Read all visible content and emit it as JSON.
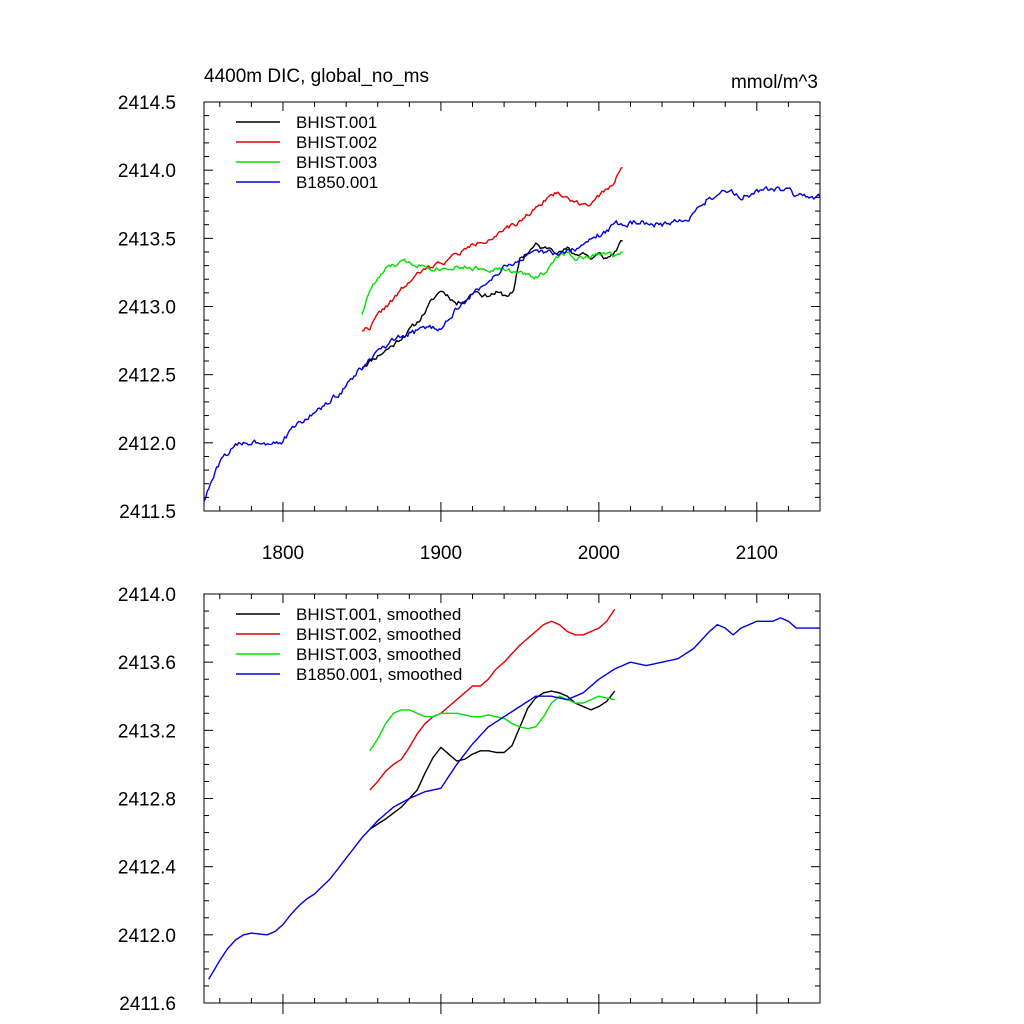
{
  "header": {
    "left_title": "4400m DIC, global_no_ms",
    "right_units": "mmol/m^3"
  },
  "chart_data": [
    {
      "type": "line",
      "xlim": [
        1750,
        2140
      ],
      "ylim": [
        2411.5,
        2414.5
      ],
      "x_ticks": [
        1800,
        1900,
        2000,
        2100
      ],
      "x_tick_labels": [
        "1800",
        "1900",
        "2000",
        "2100"
      ],
      "y_ticks": [
        2411.5,
        2412.0,
        2412.5,
        2413.0,
        2413.5,
        2414.0,
        2414.5
      ],
      "y_tick_labels": [
        "2411.5",
        "2412.0",
        "2412.5",
        "2413.0",
        "2413.5",
        "2414.0",
        "2414.5"
      ],
      "grid": false,
      "legend_position": "top-left",
      "series": [
        {
          "name": "BHIST.001",
          "color": "#000000",
          "noise": 0.02,
          "seed": 11,
          "x": [
            1850,
            1870,
            1885,
            1895,
            1900,
            1905,
            1910,
            1915,
            1922,
            1928,
            1935,
            1940,
            1946,
            1950,
            1955,
            1960,
            1965,
            1970,
            1975,
            1980,
            1985,
            1990,
            1995,
            2000,
            2005,
            2010,
            2015
          ],
          "y": [
            2412.56,
            2412.72,
            2412.88,
            2413.05,
            2413.12,
            2413.08,
            2413.02,
            2413.05,
            2413.12,
            2413.08,
            2413.1,
            2413.08,
            2413.1,
            2413.35,
            2413.4,
            2413.45,
            2413.42,
            2413.44,
            2413.4,
            2413.42,
            2413.38,
            2413.4,
            2413.35,
            2413.38,
            2413.35,
            2413.4,
            2413.48
          ]
        },
        {
          "name": "BHIST.002",
          "color": "#e00000",
          "noise": 0.02,
          "seed": 22,
          "x": [
            1850,
            1855,
            1860,
            1865,
            1870,
            1875,
            1880,
            1885,
            1890,
            1895,
            1900,
            1905,
            1910,
            1920,
            1930,
            1940,
            1950,
            1955,
            1960,
            1965,
            1970,
            1975,
            1980,
            1985,
            1990,
            1995,
            2000,
            2005,
            2010,
            2015
          ],
          "y": [
            2412.83,
            2412.85,
            2412.93,
            2413.0,
            2413.05,
            2413.12,
            2413.18,
            2413.23,
            2413.27,
            2413.3,
            2413.32,
            2413.35,
            2413.38,
            2413.45,
            2413.5,
            2413.55,
            2413.62,
            2413.68,
            2413.72,
            2413.78,
            2413.82,
            2413.83,
            2413.8,
            2413.76,
            2413.76,
            2413.76,
            2413.8,
            2413.85,
            2413.93,
            2414.02
          ]
        },
        {
          "name": "BHIST.003",
          "color": "#00e000",
          "noise": 0.02,
          "seed": 33,
          "x": [
            1850,
            1855,
            1860,
            1865,
            1870,
            1875,
            1880,
            1890,
            1900,
            1910,
            1920,
            1930,
            1940,
            1950,
            1955,
            1960,
            1965,
            1970,
            1975,
            1980,
            1985,
            1990,
            1995,
            2000,
            2005,
            2010,
            2015
          ],
          "y": [
            2412.95,
            2413.12,
            2413.2,
            2413.27,
            2413.3,
            2413.32,
            2413.32,
            2413.3,
            2413.28,
            2413.3,
            2413.28,
            2413.28,
            2413.27,
            2413.24,
            2413.23,
            2413.22,
            2413.25,
            2413.3,
            2413.38,
            2413.4,
            2413.36,
            2413.35,
            2413.36,
            2413.38,
            2413.4,
            2413.37,
            2413.4
          ]
        },
        {
          "name": "B1850.001",
          "color": "#0000e0",
          "noise": 0.025,
          "seed": 44,
          "x": [
            1750,
            1755,
            1760,
            1765,
            1770,
            1775,
            1780,
            1790,
            1800,
            1805,
            1810,
            1820,
            1830,
            1840,
            1850,
            1860,
            1870,
            1880,
            1890,
            1900,
            1910,
            1920,
            1930,
            1940,
            1950,
            1960,
            1970,
            1980,
            1990,
            2000,
            2010,
            2020,
            2030,
            2040,
            2050,
            2060,
            2070,
            2080,
            2090,
            2100,
            2110,
            2120,
            2130,
            2140
          ],
          "y": [
            2411.58,
            2411.72,
            2411.85,
            2411.93,
            2411.97,
            2412.0,
            2412.01,
            2412.01,
            2412.02,
            2412.08,
            2412.14,
            2412.22,
            2412.3,
            2412.42,
            2412.55,
            2412.66,
            2412.74,
            2412.8,
            2412.84,
            2412.85,
            2412.98,
            2413.08,
            2413.2,
            2413.28,
            2413.35,
            2413.38,
            2413.4,
            2413.4,
            2413.45,
            2413.52,
            2413.6,
            2413.62,
            2413.62,
            2413.6,
            2413.62,
            2413.68,
            2413.8,
            2413.86,
            2413.8,
            2413.85,
            2413.86,
            2413.84,
            2413.8,
            2413.8
          ]
        }
      ]
    },
    {
      "type": "line",
      "xlim": [
        1750,
        2140
      ],
      "ylim": [
        2411.6,
        2414.0
      ],
      "x_ticks": [
        1800,
        1900,
        2000,
        2100
      ],
      "x_tick_labels": [],
      "y_ticks": [
        2411.6,
        2412.0,
        2412.4,
        2412.8,
        2413.2,
        2413.6,
        2414.0
      ],
      "y_tick_labels": [
        "2411.6",
        "2412.0",
        "2412.4",
        "2412.8",
        "2413.2",
        "2413.6",
        "2414.0"
      ],
      "grid": false,
      "legend_position": "top-left",
      "series": [
        {
          "name": "BHIST.001, smoothed",
          "color": "#000000",
          "noise": 0,
          "seed": 1,
          "x": [
            1855,
            1865,
            1875,
            1885,
            1890,
            1895,
            1900,
            1905,
            1910,
            1915,
            1920,
            1925,
            1930,
            1935,
            1940,
            1945,
            1950,
            1955,
            1960,
            1965,
            1970,
            1975,
            1980,
            1985,
            1990,
            1995,
            2000,
            2005,
            2010
          ],
          "y": [
            2412.62,
            2412.68,
            2412.75,
            2412.85,
            2412.95,
            2413.04,
            2413.1,
            2413.06,
            2413.02,
            2413.03,
            2413.06,
            2413.08,
            2413.08,
            2413.07,
            2413.07,
            2413.11,
            2413.22,
            2413.33,
            2413.39,
            2413.42,
            2413.43,
            2413.42,
            2413.4,
            2413.36,
            2413.34,
            2413.32,
            2413.34,
            2413.37,
            2413.43
          ]
        },
        {
          "name": "BHIST.002, smoothed",
          "color": "#e00000",
          "noise": 0,
          "seed": 2,
          "x": [
            1855,
            1860,
            1865,
            1870,
            1875,
            1880,
            1885,
            1890,
            1895,
            1900,
            1905,
            1910,
            1915,
            1920,
            1925,
            1930,
            1935,
            1940,
            1945,
            1950,
            1955,
            1960,
            1965,
            1970,
            1975,
            1980,
            1985,
            1990,
            1995,
            2000,
            2005,
            2010
          ],
          "y": [
            2412.85,
            2412.9,
            2412.96,
            2413.0,
            2413.03,
            2413.1,
            2413.18,
            2413.24,
            2413.28,
            2413.3,
            2413.34,
            2413.38,
            2413.42,
            2413.46,
            2413.46,
            2413.5,
            2413.56,
            2413.6,
            2413.65,
            2413.7,
            2413.74,
            2413.78,
            2413.82,
            2413.84,
            2413.82,
            2413.78,
            2413.76,
            2413.76,
            2413.78,
            2413.8,
            2413.84,
            2413.91
          ]
        },
        {
          "name": "BHIST.003, smoothed",
          "color": "#00e000",
          "noise": 0,
          "seed": 3,
          "x": [
            1855,
            1860,
            1865,
            1870,
            1875,
            1880,
            1885,
            1890,
            1895,
            1900,
            1905,
            1910,
            1915,
            1920,
            1925,
            1930,
            1935,
            1940,
            1945,
            1950,
            1955,
            1960,
            1965,
            1970,
            1975,
            1980,
            1985,
            1990,
            1995,
            2000,
            2005,
            2010
          ],
          "y": [
            2413.08,
            2413.15,
            2413.24,
            2413.3,
            2413.32,
            2413.32,
            2413.3,
            2413.28,
            2413.28,
            2413.3,
            2413.3,
            2413.3,
            2413.29,
            2413.28,
            2413.28,
            2413.29,
            2413.28,
            2413.27,
            2413.24,
            2413.22,
            2413.21,
            2413.22,
            2413.28,
            2413.36,
            2413.4,
            2413.38,
            2413.36,
            2413.36,
            2413.38,
            2413.4,
            2413.39,
            2413.38
          ]
        },
        {
          "name": "B1850.001, smoothed",
          "color": "#0000e0",
          "noise": 0,
          "seed": 4,
          "x": [
            1753,
            1760,
            1765,
            1770,
            1775,
            1780,
            1790,
            1795,
            1800,
            1805,
            1810,
            1815,
            1820,
            1830,
            1840,
            1850,
            1860,
            1870,
            1880,
            1885,
            1890,
            1900,
            1910,
            1920,
            1930,
            1940,
            1950,
            1960,
            1970,
            1980,
            1990,
            2000,
            2010,
            2020,
            2030,
            2040,
            2050,
            2060,
            2070,
            2075,
            2080,
            2085,
            2090,
            2100,
            2110,
            2115,
            2120,
            2125,
            2130,
            2140
          ],
          "y": [
            2411.74,
            2411.85,
            2411.92,
            2411.97,
            2412.0,
            2412.01,
            2412.0,
            2412.02,
            2412.06,
            2412.12,
            2412.17,
            2412.21,
            2412.24,
            2412.33,
            2412.45,
            2412.57,
            2412.67,
            2412.75,
            2412.8,
            2412.82,
            2412.84,
            2412.86,
            2413.0,
            2413.12,
            2413.22,
            2413.28,
            2413.34,
            2413.4,
            2413.4,
            2413.38,
            2413.42,
            2413.5,
            2413.56,
            2413.6,
            2413.58,
            2413.6,
            2413.62,
            2413.68,
            2413.78,
            2413.82,
            2413.8,
            2413.76,
            2413.8,
            2413.84,
            2413.84,
            2413.86,
            2413.84,
            2413.8,
            2413.8,
            2413.8
          ]
        }
      ]
    }
  ]
}
